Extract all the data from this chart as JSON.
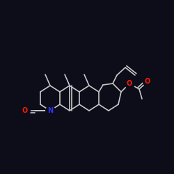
{
  "bg_color": "#0d0d1a",
  "bond_color": "#c8c8c8",
  "N_color": "#3333ff",
  "O_color": "#ff1a00",
  "lw": 1.2,
  "fig_size": [
    2.5,
    2.5
  ],
  "dpi": 100,
  "xlim": [
    0,
    250
  ],
  "ylim": [
    0,
    250
  ]
}
